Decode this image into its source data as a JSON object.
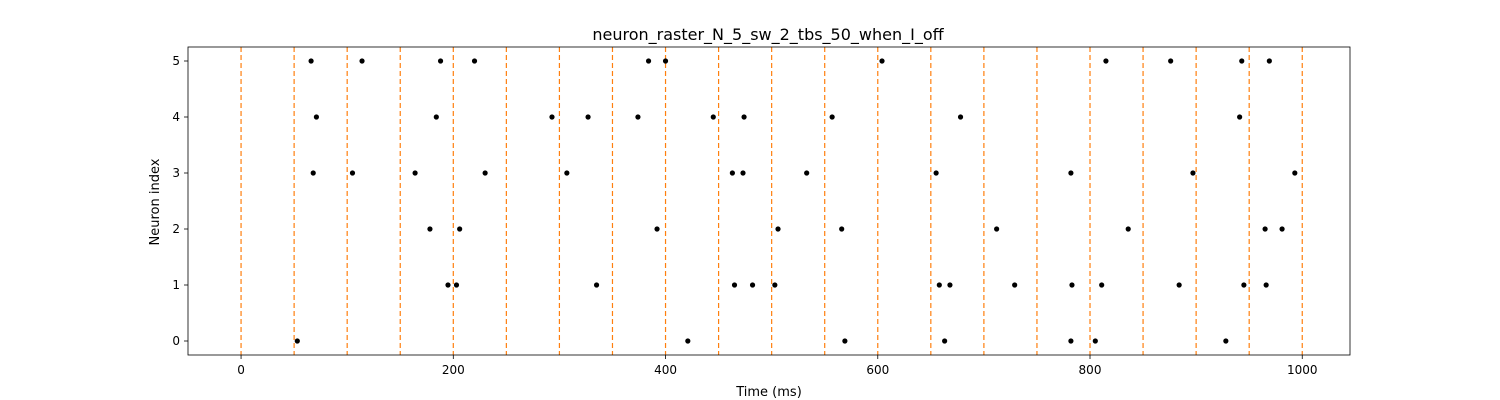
{
  "chart_data": {
    "type": "scatter",
    "title": "neuron_raster_N_5_sw_2_tbs_50_when_I_off",
    "xlabel": "Time (ms)",
    "ylabel": "Neuron index",
    "xlim": [
      -50,
      1045
    ],
    "ylim": [
      -0.25,
      5.25
    ],
    "xticks": [
      0,
      200,
      400,
      600,
      800,
      1000
    ],
    "yticks": [
      0,
      1,
      2,
      3,
      4,
      5
    ],
    "grid": false,
    "legend": "none",
    "marker_color": "#000000",
    "vline_color": "#ff7f0e",
    "vlines": [
      0,
      50,
      100,
      150,
      200,
      250,
      300,
      350,
      400,
      450,
      500,
      550,
      600,
      650,
      700,
      750,
      800,
      850,
      900,
      950,
      1000
    ],
    "series": [
      {
        "neuron": 0,
        "x": [
          53,
          569,
          421,
          663,
          782,
          805,
          928
        ]
      },
      {
        "neuron": 1,
        "x": [
          195,
          203,
          335,
          465,
          482,
          503,
          658,
          668,
          729,
          783,
          811,
          884,
          945,
          966
        ]
      },
      {
        "neuron": 2,
        "x": [
          178,
          206,
          392,
          506,
          566,
          712,
          836,
          965,
          981
        ]
      },
      {
        "neuron": 3,
        "x": [
          68,
          105,
          164,
          230,
          307,
          463,
          473,
          533,
          655,
          782,
          897,
          993
        ]
      },
      {
        "neuron": 4,
        "x": [
          71,
          184,
          293,
          327,
          374,
          445,
          474,
          557,
          678,
          941
        ]
      },
      {
        "neuron": 5,
        "x": [
          66,
          114,
          188,
          220,
          384,
          400,
          604,
          815,
          876,
          943,
          969
        ]
      }
    ]
  }
}
